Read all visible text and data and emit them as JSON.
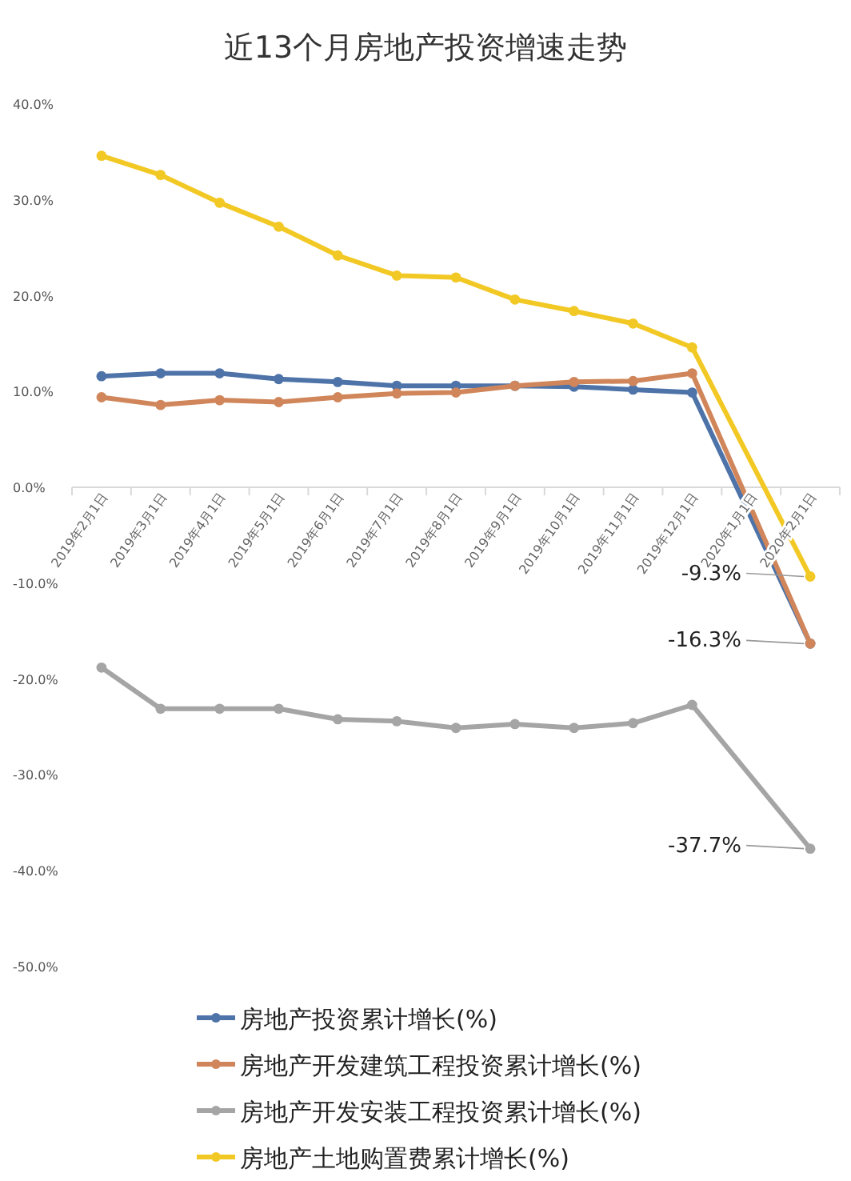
{
  "chart_data": {
    "type": "line",
    "title": "近13个月房地产投资增速走势",
    "categories": [
      "2019年2月1日",
      "2019年3月1日",
      "2019年4月1日",
      "2019年5月1日",
      "2019年6月1日",
      "2019年7月1日",
      "2019年8月1日",
      "2019年9月1日",
      "2019年10月1日",
      "2019年11月1日",
      "2019年12月1日",
      "2020年1月1日",
      "2020年2月1日"
    ],
    "series": [
      {
        "name": "房地产投资累计增长(%)",
        "color": "#4e73a8",
        "values": [
          11.6,
          11.9,
          11.9,
          11.3,
          11.0,
          10.6,
          10.6,
          10.6,
          10.5,
          10.2,
          9.9,
          null,
          -16.3
        ],
        "value_labels": [
          null,
          null,
          null,
          null,
          null,
          null,
          null,
          null,
          null,
          null,
          null,
          null,
          "-16.3%"
        ]
      },
      {
        "name": "房地产开发建筑工程投资累计增长(%)",
        "color": "#d0865a",
        "values": [
          9.4,
          8.6,
          9.1,
          8.9,
          9.4,
          9.8,
          9.9,
          10.6,
          11.0,
          11.1,
          11.9,
          null,
          -16.3
        ]
      },
      {
        "name": "房地产开发安装工程投资累计增长(%)",
        "color": "#a5a5a5",
        "values": [
          -18.8,
          -23.1,
          -23.1,
          -23.1,
          -24.2,
          -24.4,
          -25.1,
          -24.7,
          -25.1,
          -24.6,
          -22.7,
          null,
          -37.7
        ],
        "value_labels": [
          null,
          null,
          null,
          null,
          null,
          null,
          null,
          null,
          null,
          null,
          null,
          null,
          "-37.7%"
        ]
      },
      {
        "name": "房地产土地购置费累计增长(%)",
        "color": "#f2c824",
        "values": [
          34.6,
          32.6,
          29.7,
          27.2,
          24.2,
          22.1,
          21.9,
          19.6,
          18.4,
          17.1,
          14.6,
          null,
          -9.3
        ],
        "value_labels": [
          null,
          null,
          null,
          null,
          null,
          null,
          null,
          null,
          null,
          null,
          null,
          null,
          "-9.3%"
        ]
      }
    ],
    "ylim": [
      -50,
      40
    ],
    "yticks": [
      {
        "value": 40,
        "label": "40.0%"
      },
      {
        "value": 30,
        "label": "30.0%"
      },
      {
        "value": 20,
        "label": "20.0%"
      },
      {
        "value": 10,
        "label": "10.0%"
      },
      {
        "value": 0,
        "label": "0.0%"
      },
      {
        "value": -10,
        "label": "-10.0%"
      },
      {
        "value": -20,
        "label": "-20.0%"
      },
      {
        "value": -30,
        "label": "-30.0%"
      },
      {
        "value": -40,
        "label": "-40.0%"
      },
      {
        "value": -50,
        "label": "-50.0%"
      }
    ],
    "marker": "circle",
    "legend": "bottom"
  }
}
